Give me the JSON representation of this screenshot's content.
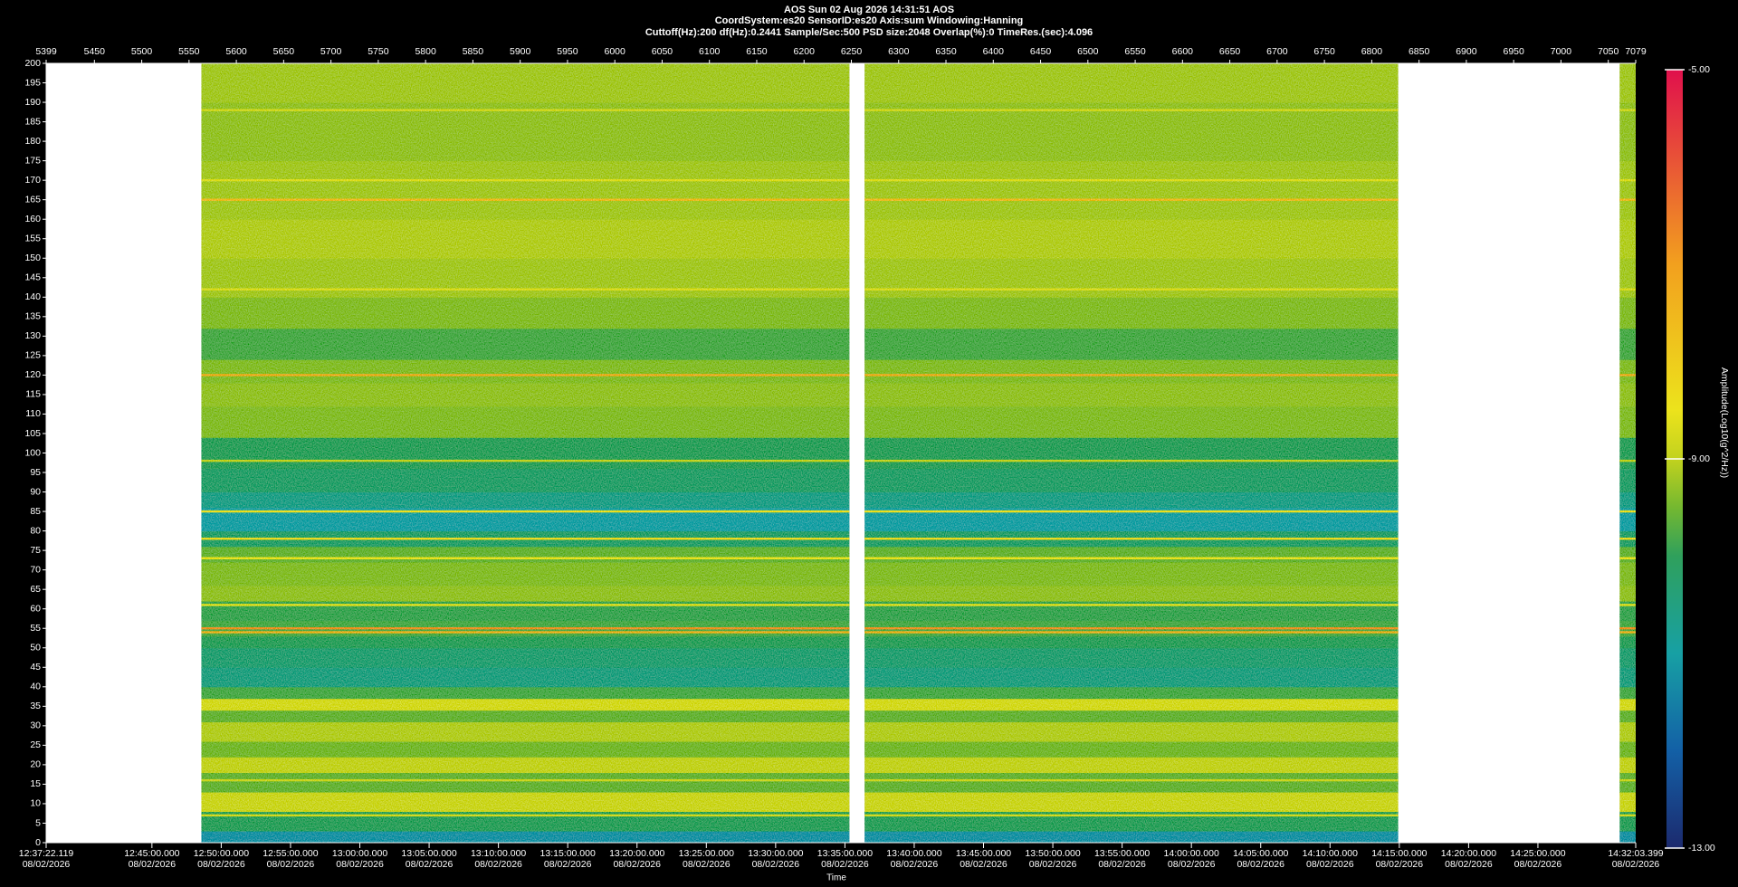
{
  "chart_data": {
    "type": "spectrogram",
    "title": "AOS  Sun 02 Aug 2026 14:31:51  AOS",
    "subtitle_lines": [
      "CoordSystem:es20    SensorID:es20     Axis:sum     Windowing:Hanning",
      "Cuttoff(Hz):200        df(Hz):0.2441        Sample/Sec:500        PSD size:2048        Overlap(%):0        TimeRes.(sec):4.096"
    ],
    "xlabel": "Time",
    "xlim": [
      5399,
      7079
    ],
    "x2ticks": [
      5399,
      5450,
      5500,
      5550,
      5600,
      5650,
      5700,
      5750,
      5800,
      5850,
      5900,
      5950,
      6000,
      6050,
      6100,
      6150,
      6200,
      6250,
      6300,
      6350,
      6400,
      6450,
      6500,
      6550,
      6600,
      6650,
      6700,
      6750,
      6800,
      6850,
      6900,
      6950,
      7000,
      7050,
      7079
    ],
    "xticks": [
      {
        "value": 5399,
        "label": "12:37:22.119",
        "date": "08/02/2026"
      },
      {
        "value": 5510.79,
        "label": "12:45:00.000",
        "date": "08/02/2026"
      },
      {
        "value": 5584.03,
        "label": "12:50:00.000",
        "date": "08/02/2026"
      },
      {
        "value": 5657.27,
        "label": "12:55:00.000",
        "date": "08/02/2026"
      },
      {
        "value": 5730.52,
        "label": "13:00:00.000",
        "date": "08/02/2026"
      },
      {
        "value": 5803.76,
        "label": "13:05:00.000",
        "date": "08/02/2026"
      },
      {
        "value": 5877.0,
        "label": "13:10:00.000",
        "date": "08/02/2026"
      },
      {
        "value": 5950.24,
        "label": "13:15:00.000",
        "date": "08/02/2026"
      },
      {
        "value": 6023.48,
        "label": "13:20:00.000",
        "date": "08/02/2026"
      },
      {
        "value": 6096.73,
        "label": "13:25:00.000",
        "date": "08/02/2026"
      },
      {
        "value": 6169.97,
        "label": "13:30:00.000",
        "date": "08/02/2026"
      },
      {
        "value": 6243.21,
        "label": "13:35:00.000",
        "date": "08/02/2026"
      },
      {
        "value": 6316.45,
        "label": "13:40:00.000",
        "date": "08/02/2026"
      },
      {
        "value": 6389.69,
        "label": "13:45:00.000",
        "date": "08/02/2026"
      },
      {
        "value": 6462.94,
        "label": "13:50:00.000",
        "date": "08/02/2026"
      },
      {
        "value": 6536.18,
        "label": "13:55:00.000",
        "date": "08/02/2026"
      },
      {
        "value": 6609.42,
        "label": "14:00:00.000",
        "date": "08/02/2026"
      },
      {
        "value": 6682.66,
        "label": "14:05:00.000",
        "date": "08/02/2026"
      },
      {
        "value": 6755.9,
        "label": "14:10:00.000",
        "date": "08/02/2026"
      },
      {
        "value": 6829.15,
        "label": "14:15:00.000",
        "date": "08/02/2026"
      },
      {
        "value": 6902.39,
        "label": "14:20:00.000",
        "date": "08/02/2026"
      },
      {
        "value": 6975.63,
        "label": "14:25:00.000",
        "date": "08/02/2026"
      },
      {
        "value": 7079,
        "label": "14:32:03.399",
        "date": "08/02/2026"
      }
    ],
    "ylim": [
      0,
      200
    ],
    "yticks": [
      0,
      5,
      10,
      15,
      20,
      25,
      30,
      35,
      40,
      45,
      50,
      55,
      60,
      65,
      70,
      75,
      80,
      85,
      90,
      95,
      100,
      105,
      110,
      115,
      120,
      125,
      130,
      135,
      140,
      145,
      150,
      155,
      160,
      165,
      170,
      175,
      180,
      185,
      190,
      195,
      200
    ],
    "data_segments": [
      [
        5563,
        6248
      ],
      [
        6264,
        6828
      ],
      [
        7062,
        7079
      ]
    ],
    "frequency_edges": [
      0,
      3,
      8,
      13,
      18,
      22,
      26,
      31,
      34,
      37,
      40,
      45,
      50,
      53,
      57,
      62,
      66,
      72,
      76,
      80,
      86,
      90,
      96,
      104,
      112,
      118,
      124,
      132,
      140,
      150,
      160,
      175,
      190,
      200
    ],
    "amplitudes": [
      -11.2,
      -10.0,
      -8.9,
      -9.6,
      -9.0,
      -9.5,
      -9.1,
      -9.6,
      -8.8,
      -9.8,
      -10.5,
      -10.3,
      -10.0,
      -9.8,
      -9.9,
      -9.3,
      -9.4,
      -9.6,
      -10.2,
      -11.0,
      -10.6,
      -10.2,
      -10.0,
      -9.4,
      -9.3,
      -9.4,
      -9.8,
      -9.4,
      -9.2,
      -9.1,
      -9.2,
      -9.3,
      -9.2
    ],
    "lines": {
      "frequencies": [
        188,
        170,
        165,
        142,
        120,
        98,
        85,
        78,
        73,
        61,
        55,
        54,
        16,
        7
      ],
      "amplitudes": [
        -8.8,
        -8.7,
        -7.6,
        -8.7,
        -7.3,
        -9.0,
        -8.4,
        -8.3,
        -8.5,
        -8.6,
        -6.8,
        -7.4,
        -8.9,
        -8.8
      ]
    },
    "colorbar": {
      "label": "Amplitude(Log10(g^2/Hz))",
      "clim": [
        -13,
        -5
      ],
      "ticks": [
        {
          "value": -5,
          "label": "-5.00"
        },
        {
          "value": -9,
          "label": "-9.00"
        },
        {
          "value": -13,
          "label": "-13.00"
        }
      ]
    },
    "colormap": [
      {
        "value": -13,
        "color": "#1c2a6e"
      },
      {
        "value": -12,
        "color": "#1360a6"
      },
      {
        "value": -11,
        "color": "#17a0a4"
      },
      {
        "value": -10,
        "color": "#2fa05c"
      },
      {
        "value": -9.5,
        "color": "#74b830"
      },
      {
        "value": -9,
        "color": "#c2d21e"
      },
      {
        "value": -8.5,
        "color": "#ece31c"
      },
      {
        "value": -7,
        "color": "#f2a01e"
      },
      {
        "value": -5,
        "color": "#e0104c"
      }
    ],
    "background": "#000000",
    "empty_color": "#ffffff"
  }
}
